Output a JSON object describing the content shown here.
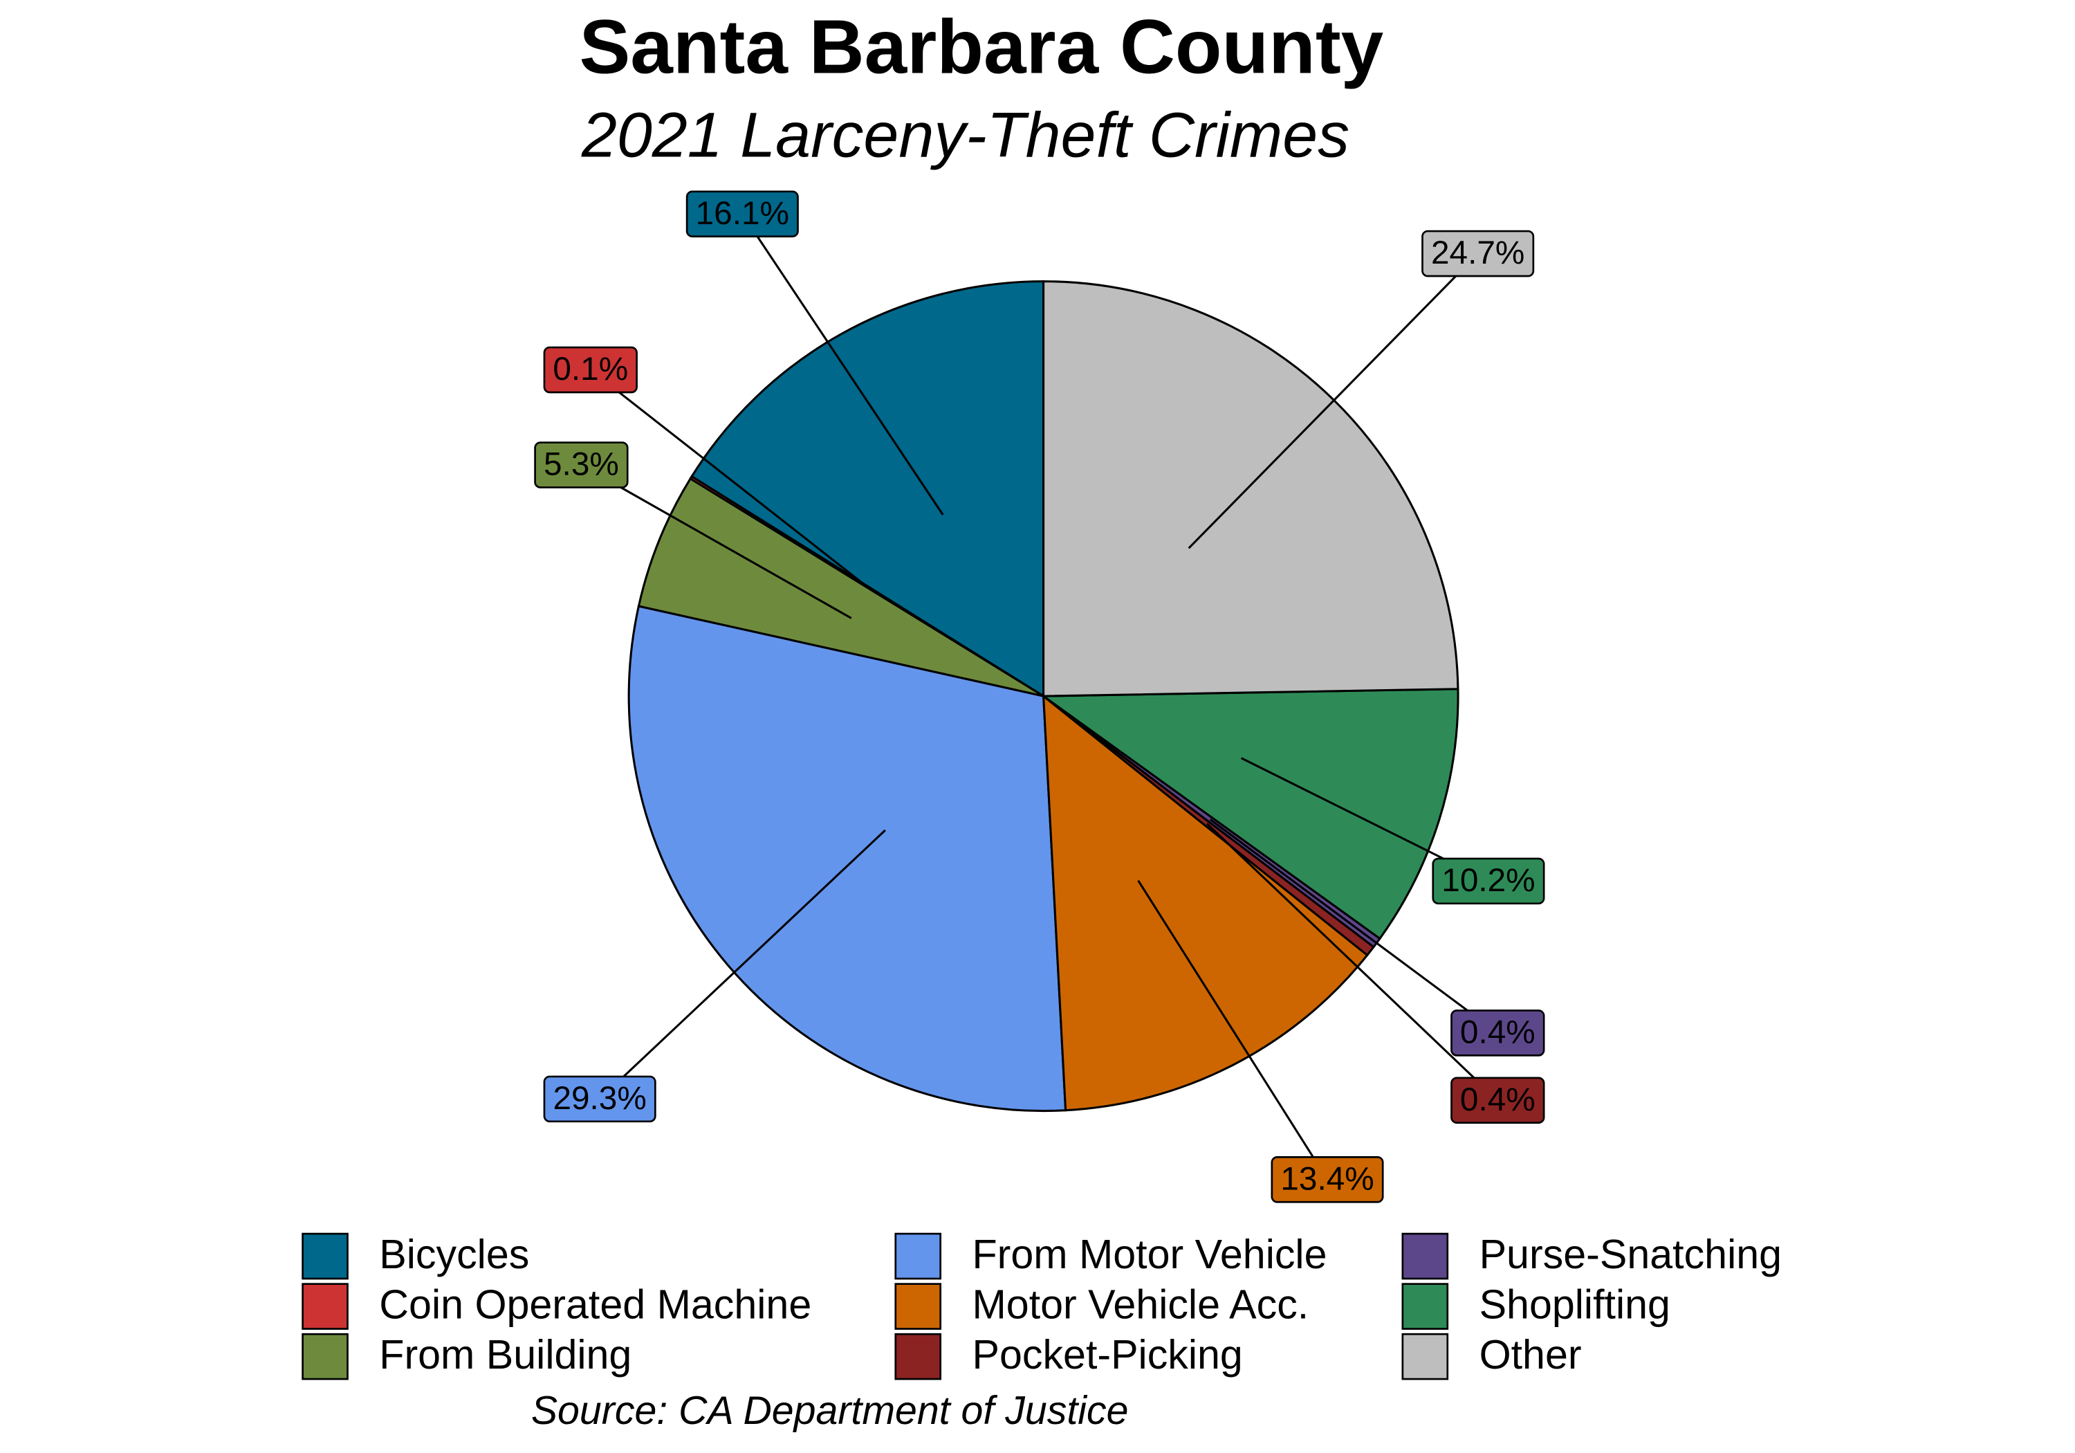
{
  "chart_data": {
    "type": "pie",
    "title": "Santa Barbara County",
    "subtitle": "2021 Larceny-Theft Crimes",
    "source": "Source: CA Department of Justice",
    "categories": [
      "Bicycles",
      "Coin Operated Machine",
      "From Building",
      "From Motor Vehicle",
      "Motor Vehicle Acc.",
      "Pocket-Picking",
      "Purse-Snatching",
      "Shoplifting",
      "Other"
    ],
    "values": [
      16.1,
      0.1,
      5.3,
      29.3,
      13.4,
      0.4,
      0.4,
      10.2,
      24.7
    ],
    "value_labels": [
      "16.1%",
      "0.1%",
      "5.3%",
      "29.3%",
      "13.4%",
      "0.4%",
      "0.4%",
      "10.2%",
      "24.7%"
    ],
    "colors": [
      "#00688b",
      "#cd3333",
      "#6e8b3d",
      "#6495ed",
      "#cd6600",
      "#8b2323",
      "#5d478b",
      "#2e8b57",
      "#bebebe"
    ],
    "legend": "bottom"
  }
}
